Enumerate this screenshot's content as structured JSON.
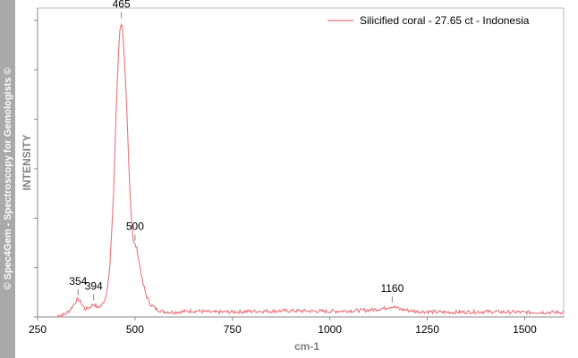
{
  "watermark": "© Spec4Gem - Spectroscopy for Gemologists ©",
  "chart_data": {
    "type": "line",
    "title": "",
    "xlabel": "cm-1",
    "ylabel": "INTENSITY",
    "xlim": [
      250,
      1600
    ],
    "ylim": [
      0,
      1
    ],
    "x_ticks": [
      250,
      500,
      750,
      1000,
      1250,
      1500
    ],
    "y_ticks": [
      0,
      0.16,
      0.32,
      0.48,
      0.64,
      0.8,
      0.96
    ],
    "y_tick_labels_shown": false,
    "grid": false,
    "legend_position": "top-right",
    "series": [
      {
        "name": "Silicified coral - 27.65 ct - Indonesia",
        "color": "#e8757b",
        "x": [
          300,
          320,
          335,
          345,
          354,
          362,
          372,
          382,
          394,
          404,
          415,
          425,
          435,
          445,
          452,
          458,
          462,
          465,
          468,
          472,
          478,
          484,
          490,
          496,
          500,
          505,
          512,
          520,
          530,
          540,
          555,
          570,
          600,
          650,
          700,
          800,
          900,
          1000,
          1100,
          1140,
          1160,
          1180,
          1220,
          1300,
          1400,
          1500,
          1600
        ],
        "y": [
          0.005,
          0.008,
          0.025,
          0.045,
          0.058,
          0.045,
          0.025,
          0.03,
          0.042,
          0.03,
          0.038,
          0.065,
          0.15,
          0.4,
          0.68,
          0.87,
          0.94,
          0.955,
          0.93,
          0.85,
          0.7,
          0.5,
          0.33,
          0.24,
          0.235,
          0.22,
          0.17,
          0.11,
          0.065,
          0.04,
          0.025,
          0.018,
          0.015,
          0.02,
          0.015,
          0.018,
          0.02,
          0.018,
          0.022,
          0.028,
          0.035,
          0.025,
          0.018,
          0.015,
          0.017,
          0.015,
          0.015
        ]
      }
    ],
    "annotations": [
      {
        "label": "354",
        "x": 354,
        "y": 0.058
      },
      {
        "label": "394",
        "x": 394,
        "y": 0.042
      },
      {
        "label": "465",
        "x": 465,
        "y": 0.955
      },
      {
        "label": "500",
        "x": 500,
        "y": 0.235
      },
      {
        "label": "1160",
        "x": 1160,
        "y": 0.035
      }
    ]
  }
}
